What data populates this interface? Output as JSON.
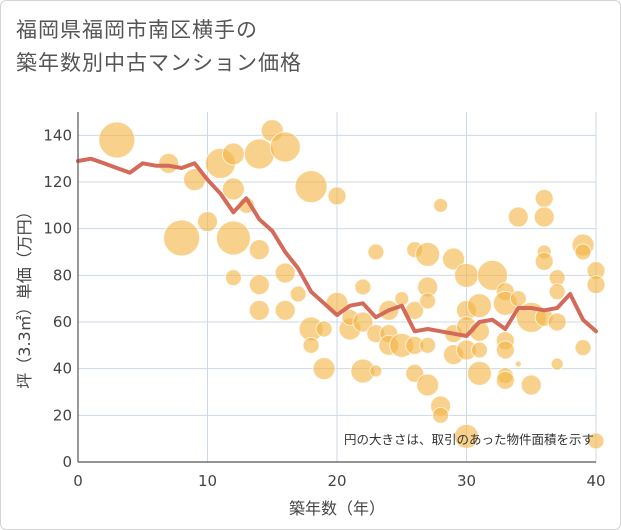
{
  "title_lines": [
    "福岡県福岡市南区横手の",
    "築年数別中古マンション価格"
  ],
  "chart_data": {
    "type": "scatter",
    "title": "福岡県福岡市南区横手の築年数別中古マンション価格",
    "xlabel": "築年数（年）",
    "ylabel": "坪（3.3㎡）単価（万円）",
    "xlim": [
      0,
      40
    ],
    "ylim": [
      0,
      150
    ],
    "xticks": [
      0,
      10,
      20,
      30,
      40
    ],
    "yticks": [
      0,
      20,
      40,
      60,
      80,
      100,
      120,
      140
    ],
    "grid": true,
    "note": "円の大きさは、取引のあった物件面積を示す",
    "colors": {
      "bubble": "#f4b545",
      "line": "#d46a5a",
      "grid": "#ccd9e6"
    },
    "bubbles": [
      {
        "x": 3,
        "y": 138,
        "r": 18
      },
      {
        "x": 7,
        "y": 128,
        "r": 10
      },
      {
        "x": 8,
        "y": 96,
        "r": 18
      },
      {
        "x": 9,
        "y": 121,
        "r": 11
      },
      {
        "x": 10,
        "y": 103,
        "r": 10
      },
      {
        "x": 11,
        "y": 128,
        "r": 15
      },
      {
        "x": 12,
        "y": 132,
        "r": 11
      },
      {
        "x": 12,
        "y": 117,
        "r": 11
      },
      {
        "x": 12,
        "y": 96,
        "r": 17
      },
      {
        "x": 12,
        "y": 79,
        "r": 8
      },
      {
        "x": 13,
        "y": 110,
        "r": 8
      },
      {
        "x": 14,
        "y": 132,
        "r": 15
      },
      {
        "x": 14,
        "y": 91,
        "r": 10
      },
      {
        "x": 14,
        "y": 76,
        "r": 10
      },
      {
        "x": 14,
        "y": 65,
        "r": 10
      },
      {
        "x": 15,
        "y": 142,
        "r": 11
      },
      {
        "x": 16,
        "y": 135,
        "r": 15
      },
      {
        "x": 16,
        "y": 81,
        "r": 10
      },
      {
        "x": 16,
        "y": 65,
        "r": 10
      },
      {
        "x": 17,
        "y": 72,
        "r": 8
      },
      {
        "x": 18,
        "y": 118,
        "r": 16
      },
      {
        "x": 18,
        "y": 57,
        "r": 12
      },
      {
        "x": 18,
        "y": 50,
        "r": 8
      },
      {
        "x": 19,
        "y": 57,
        "r": 8
      },
      {
        "x": 19,
        "y": 40,
        "r": 11
      },
      {
        "x": 20,
        "y": 114,
        "r": 9
      },
      {
        "x": 20,
        "y": 68,
        "r": 11
      },
      {
        "x": 21,
        "y": 57,
        "r": 11
      },
      {
        "x": 21,
        "y": 62,
        "r": 8
      },
      {
        "x": 22,
        "y": 60,
        "r": 10
      },
      {
        "x": 22,
        "y": 75,
        "r": 8
      },
      {
        "x": 22,
        "y": 39,
        "r": 12
      },
      {
        "x": 23,
        "y": 90,
        "r": 8
      },
      {
        "x": 23,
        "y": 55,
        "r": 9
      },
      {
        "x": 23,
        "y": 39,
        "r": 6
      },
      {
        "x": 24,
        "y": 65,
        "r": 10
      },
      {
        "x": 24,
        "y": 55,
        "r": 9
      },
      {
        "x": 24,
        "y": 50,
        "r": 10
      },
      {
        "x": 25,
        "y": 70,
        "r": 7
      },
      {
        "x": 25,
        "y": 50,
        "r": 12
      },
      {
        "x": 26,
        "y": 91,
        "r": 8
      },
      {
        "x": 26,
        "y": 65,
        "r": 9
      },
      {
        "x": 26,
        "y": 50,
        "r": 9
      },
      {
        "x": 26,
        "y": 38,
        "r": 9
      },
      {
        "x": 27,
        "y": 89,
        "r": 12
      },
      {
        "x": 27,
        "y": 75,
        "r": 10
      },
      {
        "x": 27,
        "y": 69,
        "r": 8
      },
      {
        "x": 27,
        "y": 50,
        "r": 8
      },
      {
        "x": 27,
        "y": 33,
        "r": 11
      },
      {
        "x": 28,
        "y": 110,
        "r": 7
      },
      {
        "x": 28,
        "y": 24,
        "r": 10
      },
      {
        "x": 28,
        "y": 20,
        "r": 8
      },
      {
        "x": 29,
        "y": 87,
        "r": 11
      },
      {
        "x": 29,
        "y": 55,
        "r": 9
      },
      {
        "x": 29,
        "y": 46,
        "r": 10
      },
      {
        "x": 30,
        "y": 80,
        "r": 12
      },
      {
        "x": 30,
        "y": 65,
        "r": 10
      },
      {
        "x": 30,
        "y": 58,
        "r": 10
      },
      {
        "x": 30,
        "y": 48,
        "r": 10
      },
      {
        "x": 30,
        "y": 11,
        "r": 12
      },
      {
        "x": 31,
        "y": 67,
        "r": 12
      },
      {
        "x": 31,
        "y": 56,
        "r": 10
      },
      {
        "x": 31,
        "y": 48,
        "r": 8
      },
      {
        "x": 31,
        "y": 38,
        "r": 12
      },
      {
        "x": 32,
        "y": 80,
        "r": 15
      },
      {
        "x": 33,
        "y": 73,
        "r": 9
      },
      {
        "x": 33,
        "y": 68,
        "r": 12
      },
      {
        "x": 33,
        "y": 52,
        "r": 9
      },
      {
        "x": 33,
        "y": 48,
        "r": 9
      },
      {
        "x": 33,
        "y": 37,
        "r": 8
      },
      {
        "x": 33,
        "y": 35,
        "r": 9
      },
      {
        "x": 34,
        "y": 105,
        "r": 10
      },
      {
        "x": 34,
        "y": 70,
        "r": 8
      },
      {
        "x": 34,
        "y": 42,
        "r": 3
      },
      {
        "x": 35,
        "y": 62,
        "r": 15
      },
      {
        "x": 35,
        "y": 33,
        "r": 10
      },
      {
        "x": 36,
        "y": 113,
        "r": 9
      },
      {
        "x": 36,
        "y": 105,
        "r": 10
      },
      {
        "x": 36,
        "y": 90,
        "r": 7
      },
      {
        "x": 36,
        "y": 86,
        "r": 9
      },
      {
        "x": 36,
        "y": 62,
        "r": 9
      },
      {
        "x": 37,
        "y": 79,
        "r": 8
      },
      {
        "x": 37,
        "y": 73,
        "r": 8
      },
      {
        "x": 37,
        "y": 60,
        "r": 9
      },
      {
        "x": 37,
        "y": 42,
        "r": 6
      },
      {
        "x": 39,
        "y": 93,
        "r": 11
      },
      {
        "x": 39,
        "y": 90,
        "r": 8
      },
      {
        "x": 39,
        "y": 49,
        "r": 8
      },
      {
        "x": 40,
        "y": 82,
        "r": 9
      },
      {
        "x": 40,
        "y": 76,
        "r": 9
      },
      {
        "x": 40,
        "y": 9,
        "r": 8
      }
    ],
    "line": {
      "x": [
        0,
        1,
        2,
        3,
        4,
        5,
        6,
        7,
        8,
        9,
        10,
        11,
        12,
        13,
        14,
        15,
        16,
        17,
        18,
        19,
        20,
        21,
        22,
        23,
        24,
        25,
        26,
        27,
        28,
        29,
        30,
        31,
        32,
        33,
        34,
        35,
        36,
        37,
        38,
        39,
        40
      ],
      "y": [
        129,
        130,
        128,
        126,
        124,
        128,
        127,
        127,
        126,
        128,
        121,
        115,
        107,
        113,
        104,
        99,
        90,
        83,
        73,
        68,
        63,
        67,
        68,
        62,
        65,
        67,
        56,
        57,
        56,
        55,
        54,
        60,
        61,
        57,
        66,
        66,
        65,
        66,
        72,
        61,
        56
      ]
    }
  }
}
